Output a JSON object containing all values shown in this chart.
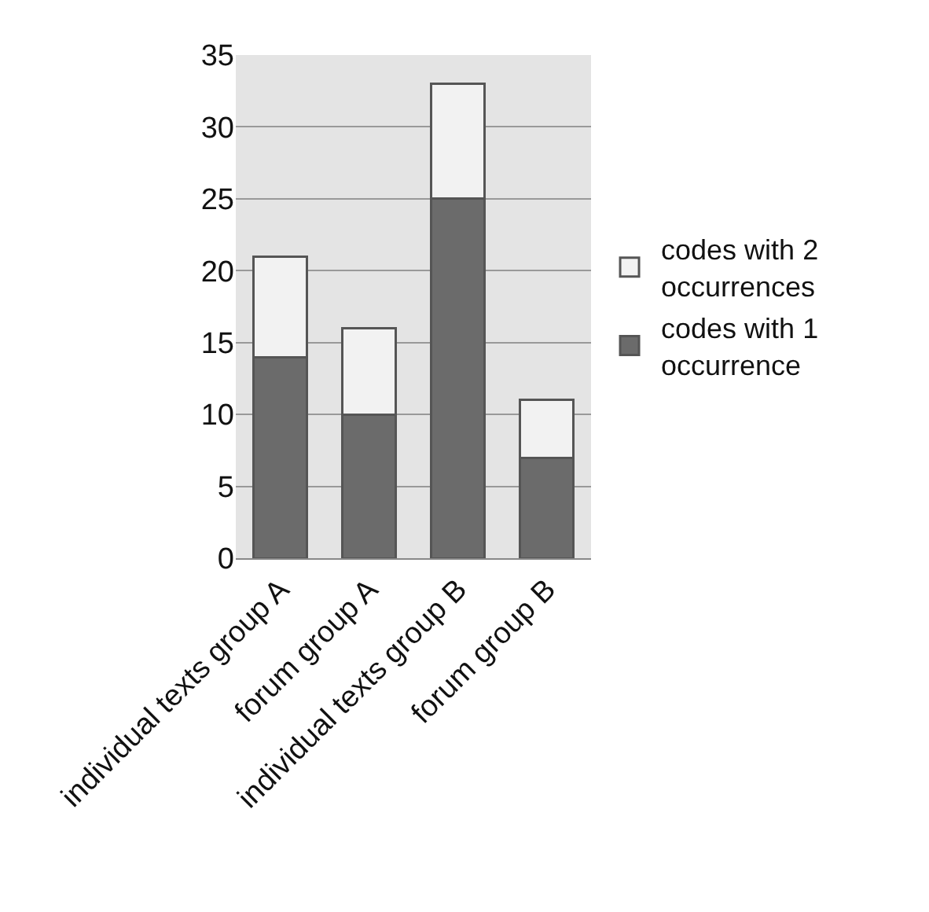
{
  "chart_data": {
    "type": "bar",
    "stacked": true,
    "categories": [
      "individual texts group A",
      "forum group A",
      "individual texts group B",
      "forum group B"
    ],
    "series": [
      {
        "name": "codes with 1 occurrence",
        "color": "#6b6b6b",
        "values": [
          14,
          10,
          25,
          7
        ]
      },
      {
        "name": "codes with 2 occurrences",
        "color": "#f2f2f2",
        "values": [
          7,
          6,
          8,
          4
        ]
      }
    ],
    "ylim": [
      0,
      35
    ],
    "yticks": [
      0,
      5,
      10,
      15,
      20,
      25,
      30,
      35
    ],
    "grid": "y",
    "legend": "right"
  }
}
